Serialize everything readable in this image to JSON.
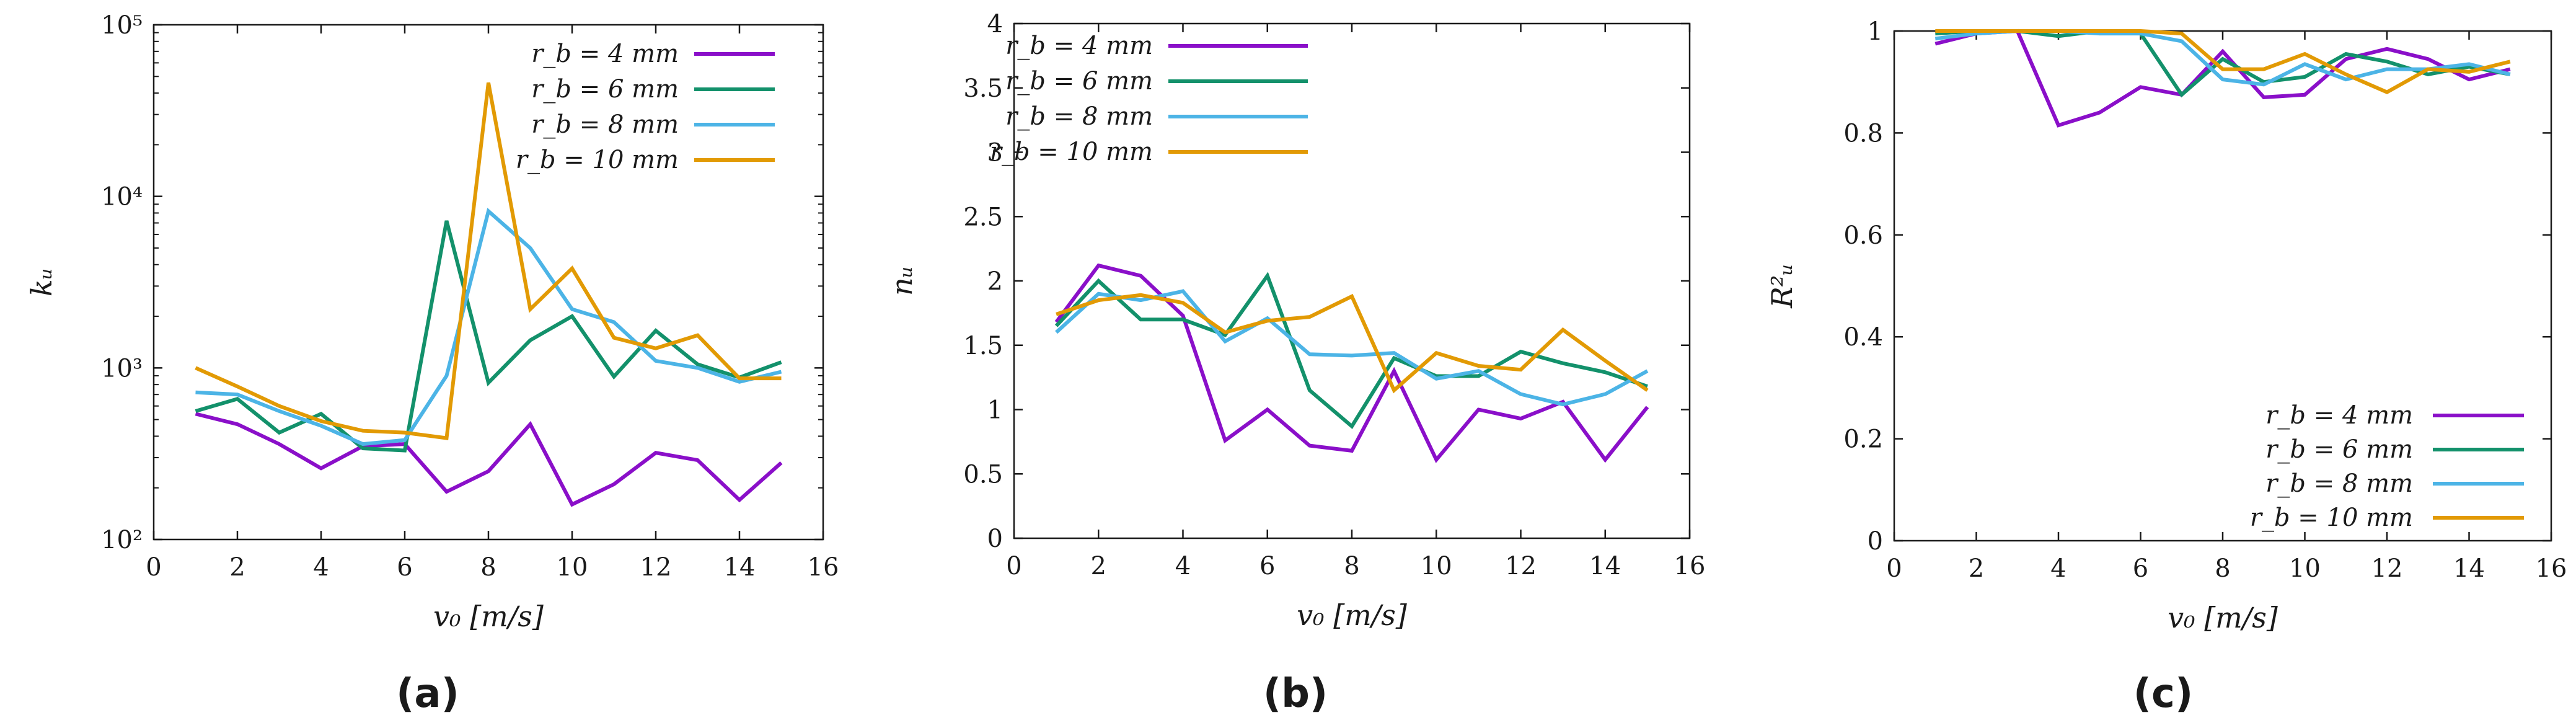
{
  "colors": {
    "rb4": "#8a0fc9",
    "rb6": "#13916b",
    "rb8": "#4cb4e6",
    "rb10": "#e29a04",
    "axis": "#1a1a1a"
  },
  "chart_data": [
    {
      "type": "line",
      "panel_label": "(a)",
      "xlabel": "v₀ [m/s]",
      "ylabel": "kᵤ",
      "xlim": [
        0,
        16
      ],
      "xticks": [
        0,
        2,
        4,
        6,
        8,
        10,
        12,
        14,
        16
      ],
      "ylim": [
        100,
        100000
      ],
      "yscale": "log",
      "yticks": [
        100,
        1000,
        10000,
        100000
      ],
      "ytick_labels": [
        "10²",
        "10³",
        "10⁴",
        "10⁵"
      ],
      "legend_position": "top-right",
      "x": [
        1,
        2,
        3,
        4,
        5,
        6,
        7,
        8,
        9,
        10,
        11,
        12,
        13,
        14,
        15
      ],
      "series": [
        {
          "name": "r_b = 4 mm",
          "color_key": "rb4",
          "values": [
            540,
            470,
            360,
            260,
            350,
            360,
            190,
            250,
            470,
            160,
            210,
            320,
            290,
            170,
            280
          ]
        },
        {
          "name": "r_b = 6 mm",
          "color_key": "rb6",
          "values": [
            560,
            660,
            420,
            540,
            340,
            330,
            7200,
            820,
            1450,
            2000,
            890,
            1650,
            1050,
            880,
            1080
          ]
        },
        {
          "name": "r_b = 8 mm",
          "color_key": "rb8",
          "values": [
            720,
            700,
            560,
            460,
            360,
            380,
            900,
            8200,
            5000,
            2200,
            1850,
            1100,
            1000,
            830,
            950
          ]
        },
        {
          "name": "r_b = 10 mm",
          "color_key": "rb10",
          "values": [
            1000,
            780,
            600,
            490,
            430,
            420,
            390,
            46000,
            2200,
            3800,
            1500,
            1300,
            1550,
            870,
            870
          ]
        }
      ]
    },
    {
      "type": "line",
      "panel_label": "(b)",
      "xlabel": "v₀ [m/s]",
      "ylabel": "nᵤ",
      "xlim": [
        0,
        16
      ],
      "xticks": [
        0,
        2,
        4,
        6,
        8,
        10,
        12,
        14,
        16
      ],
      "ylim": [
        0,
        4
      ],
      "yscale": "linear",
      "yticks": [
        0,
        0.5,
        1,
        1.5,
        2,
        2.5,
        3,
        3.5,
        4
      ],
      "ytick_labels": [
        "0",
        "0.5",
        "1",
        "1.5",
        "2",
        "2.5",
        "3",
        "3.5",
        "4"
      ],
      "legend_position": "top-left",
      "x": [
        1,
        2,
        3,
        4,
        5,
        6,
        7,
        8,
        9,
        10,
        11,
        12,
        13,
        14,
        15
      ],
      "series": [
        {
          "name": "r_b = 4 mm",
          "color_key": "rb4",
          "values": [
            1.68,
            2.12,
            2.04,
            1.73,
            0.76,
            1.0,
            0.72,
            0.68,
            1.3,
            0.61,
            1.0,
            0.93,
            1.06,
            0.61,
            1.02
          ]
        },
        {
          "name": "r_b = 6 mm",
          "color_key": "rb6",
          "values": [
            1.65,
            2.0,
            1.7,
            1.7,
            1.58,
            2.04,
            1.15,
            0.87,
            1.4,
            1.26,
            1.26,
            1.45,
            1.36,
            1.29,
            1.18
          ]
        },
        {
          "name": "r_b = 8 mm",
          "color_key": "rb8",
          "values": [
            1.6,
            1.9,
            1.85,
            1.92,
            1.53,
            1.71,
            1.43,
            1.42,
            1.44,
            1.24,
            1.3,
            1.12,
            1.04,
            1.12,
            1.3
          ]
        },
        {
          "name": "r_b = 10 mm",
          "color_key": "rb10",
          "values": [
            1.74,
            1.85,
            1.89,
            1.83,
            1.6,
            1.69,
            1.72,
            1.88,
            1.15,
            1.44,
            1.34,
            1.31,
            1.62,
            1.38,
            1.15
          ]
        }
      ]
    },
    {
      "type": "line",
      "panel_label": "(c)",
      "xlabel": "v₀ [m/s]",
      "ylabel": "R²ᵤ",
      "xlim": [
        0,
        16
      ],
      "xticks": [
        0,
        2,
        4,
        6,
        8,
        10,
        12,
        14,
        16
      ],
      "ylim": [
        0,
        1
      ],
      "yscale": "linear",
      "yticks": [
        0,
        0.2,
        0.4,
        0.6,
        0.8,
        1
      ],
      "ytick_labels": [
        "0",
        "0.2",
        "0.4",
        "0.6",
        "0.8",
        "1"
      ],
      "legend_position": "bottom-right",
      "x": [
        1,
        2,
        3,
        4,
        5,
        6,
        7,
        8,
        9,
        10,
        11,
        12,
        13,
        14,
        15
      ],
      "series": [
        {
          "name": "r_b = 4 mm",
          "color_key": "rb4",
          "values": [
            0.975,
            0.995,
            1.0,
            0.815,
            0.84,
            0.89,
            0.875,
            0.96,
            0.87,
            0.875,
            0.945,
            0.965,
            0.945,
            0.905,
            0.925
          ]
        },
        {
          "name": "r_b = 6 mm",
          "color_key": "rb6",
          "values": [
            0.995,
            1.0,
            1.0,
            0.99,
            1.0,
            0.995,
            0.875,
            0.945,
            0.9,
            0.91,
            0.955,
            0.94,
            0.915,
            0.93,
            0.915
          ]
        },
        {
          "name": "r_b = 8 mm",
          "color_key": "rb8",
          "values": [
            0.985,
            0.995,
            1.0,
            1.0,
            0.995,
            0.995,
            0.98,
            0.905,
            0.895,
            0.935,
            0.905,
            0.925,
            0.925,
            0.935,
            0.915
          ]
        },
        {
          "name": "r_b = 10 mm",
          "color_key": "rb10",
          "values": [
            1.0,
            1.0,
            1.0,
            1.0,
            1.0,
            1.0,
            0.995,
            0.925,
            0.925,
            0.955,
            0.915,
            0.88,
            0.925,
            0.92,
            0.94
          ]
        }
      ]
    }
  ]
}
